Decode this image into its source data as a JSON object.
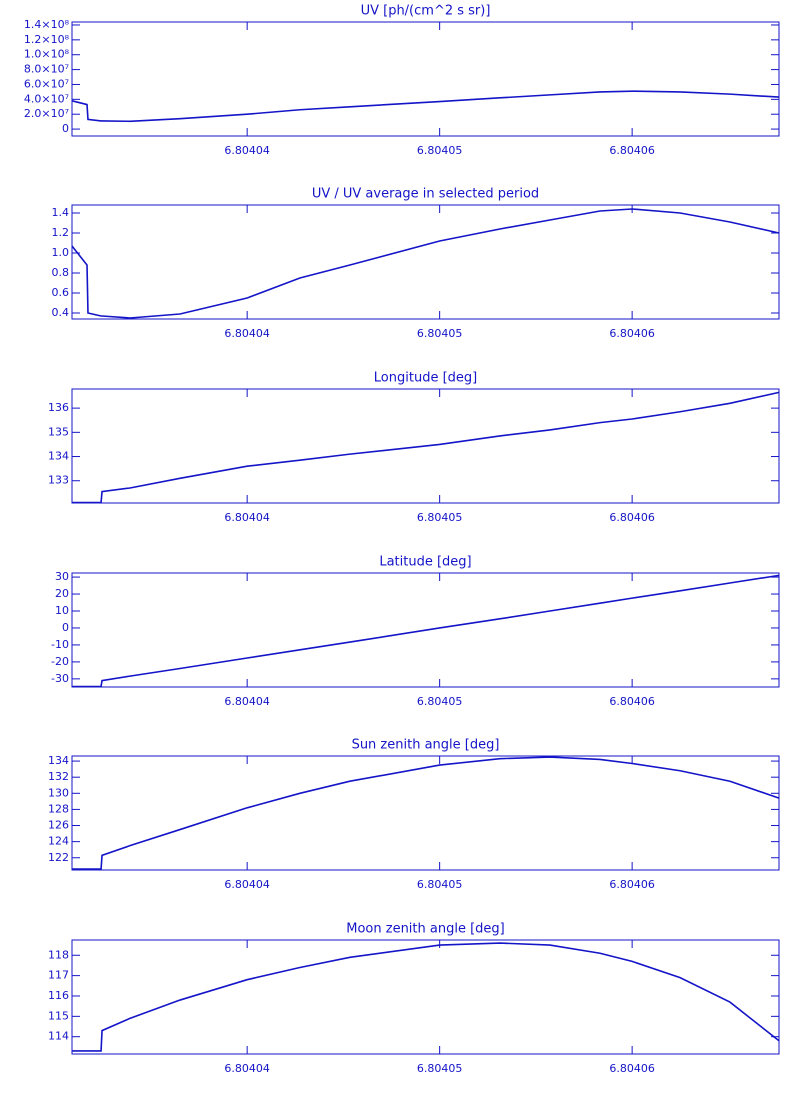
{
  "chart_data": [
    {
      "type": "line",
      "title": "UV [ph/(cm^2 s sr)]",
      "x": [
        6.8040309,
        6.80403168,
        6.80403173,
        6.80403241,
        6.80403246,
        6.80403391,
        6.80403651,
        6.80404,
        6.80404274,
        6.80404534,
        6.80405,
        6.80405313,
        6.80405573,
        6.80405833,
        6.80406,
        6.80406249,
        6.80406508,
        6.80406763
      ],
      "values": [
        38000000,
        33000000,
        13000000,
        11000000,
        11000000,
        10500000,
        14000000,
        20000000,
        26000000,
        30000000,
        37000000,
        42000000,
        46000000,
        50000000,
        51000000,
        50000000,
        47000000,
        43000000
      ],
      "color": "#1414c8",
      "xlim": [
        6.8040309,
        6.80406763
      ],
      "xticks": [
        6.80404,
        6.80405,
        6.80406
      ],
      "ylim": [
        -9300000,
        144000000
      ],
      "yticks": [
        0,
        {
          "value": 20000000,
          "label": "2.0×10⁷"
        },
        {
          "value": 40000000,
          "label": "4.0×10⁷"
        },
        {
          "value": 60000000,
          "label": "6.0×10⁷"
        },
        {
          "value": 80000000,
          "label": "8.0×10⁷"
        },
        {
          "value": 100000000,
          "label": "1.0×10⁸"
        },
        {
          "value": 120000000,
          "label": "1.2×10⁸"
        },
        {
          "value": 140000000,
          "label": "1.4×10⁸"
        }
      ]
    },
    {
      "type": "line",
      "title": "UV / UV average in selected period",
      "x": [
        6.8040309,
        6.80403168,
        6.80403173,
        6.80403241,
        6.80403246,
        6.80403391,
        6.80403651,
        6.80404,
        6.80404274,
        6.80404534,
        6.80405,
        6.80405313,
        6.80405573,
        6.80405833,
        6.80406,
        6.80406249,
        6.80406508,
        6.80406763
      ],
      "values": [
        1.07,
        0.88,
        0.4,
        0.37,
        0.37,
        0.35,
        0.39,
        0.55,
        0.75,
        0.88,
        1.12,
        1.24,
        1.33,
        1.42,
        1.44,
        1.4,
        1.31,
        1.2
      ],
      "color": "#1414c8",
      "xlim": [
        6.8040309,
        6.80406763
      ],
      "xticks": [
        6.80404,
        6.80405,
        6.80406
      ],
      "ylim": [
        0.34,
        1.48
      ],
      "yticks": [
        0.4,
        0.6,
        0.8,
        {
          "value": 1,
          "label": "1.0"
        },
        1.2,
        1.4
      ]
    },
    {
      "type": "line",
      "title": "Longitude [deg]",
      "x": [
        6.8040309,
        6.80403168,
        6.80403173,
        6.80403241,
        6.80403246,
        6.80403391,
        6.80403651,
        6.80404,
        6.80404274,
        6.80404534,
        6.80405,
        6.80405313,
        6.80405573,
        6.80405833,
        6.80406,
        6.80406249,
        6.80406508,
        6.80406763
      ],
      "values": [
        132.1,
        132.1,
        132.1,
        132.1,
        132.55,
        132.7,
        133.1,
        133.6,
        133.85,
        134.1,
        134.5,
        134.85,
        135.1,
        135.4,
        135.55,
        135.85,
        136.2,
        136.65
      ],
      "color": "#1414c8",
      "xlim": [
        6.8040309,
        6.80406763
      ],
      "xticks": [
        6.80404,
        6.80405,
        6.80406
      ],
      "ylim": [
        132.08,
        136.79
      ],
      "yticks": [
        133,
        134,
        135,
        136
      ]
    },
    {
      "type": "line",
      "title": "Latitude [deg]",
      "x": [
        6.8040309,
        6.80403168,
        6.80403173,
        6.80403241,
        6.80403246,
        6.80403391,
        6.80403651,
        6.80404,
        6.80404274,
        6.80404534,
        6.80405,
        6.80405313,
        6.80405573,
        6.80405833,
        6.80406,
        6.80406249,
        6.80406508,
        6.80406763
      ],
      "values": [
        -34.5,
        -34.5,
        -34.5,
        -34.5,
        -31,
        -28.4,
        -23.9,
        -17.7,
        -12.9,
        -8.3,
        0,
        5.4,
        10,
        14.6,
        17.6,
        21.9,
        26.5,
        31
      ],
      "color": "#1414c8",
      "xlim": [
        6.8040309,
        6.80406763
      ],
      "xticks": [
        6.80404,
        6.80405,
        6.80406
      ],
      "ylim": [
        -34.8,
        32.4
      ],
      "yticks": [
        -30,
        -20,
        -10,
        0,
        10,
        20,
        30
      ]
    },
    {
      "type": "line",
      "title": "Sun zenith angle [deg]",
      "x": [
        6.8040309,
        6.80403168,
        6.80403173,
        6.80403241,
        6.80403246,
        6.80403391,
        6.80403651,
        6.80404,
        6.80404274,
        6.80404534,
        6.80405,
        6.80405313,
        6.80405573,
        6.80405833,
        6.80406,
        6.80406249,
        6.80406508,
        6.80406763
      ],
      "values": [
        120.6,
        120.6,
        120.6,
        120.6,
        122.3,
        123.5,
        125.5,
        128.2,
        130,
        131.5,
        133.5,
        134.3,
        134.5,
        134.2,
        133.7,
        132.8,
        131.5,
        129.4
      ],
      "color": "#1414c8",
      "xlim": [
        6.8040309,
        6.80406763
      ],
      "xticks": [
        6.80404,
        6.80405,
        6.80406
      ],
      "ylim": [
        120.48,
        134.63
      ],
      "yticks": [
        122,
        124,
        126,
        128,
        130,
        132,
        134
      ]
    },
    {
      "type": "line",
      "title": "Moon zenith angle [deg]",
      "x": [
        6.8040309,
        6.80403168,
        6.80403173,
        6.80403241,
        6.80403246,
        6.80403391,
        6.80403651,
        6.80404,
        6.80404274,
        6.80404534,
        6.80405,
        6.80405313,
        6.80405573,
        6.80405833,
        6.80406,
        6.80406249,
        6.80406508,
        6.80406763
      ],
      "values": [
        113.3,
        113.3,
        113.3,
        113.3,
        114.3,
        114.9,
        115.8,
        116.8,
        117.4,
        117.9,
        118.5,
        118.6,
        118.5,
        118.1,
        117.7,
        116.9,
        115.7,
        113.8
      ],
      "color": "#1414c8",
      "xlim": [
        6.8040309,
        6.80406763
      ],
      "xticks": [
        6.80404,
        6.80405,
        6.80406
      ],
      "ylim": [
        113.15,
        118.75
      ],
      "yticks": [
        114,
        115,
        116,
        117,
        118
      ]
    }
  ]
}
